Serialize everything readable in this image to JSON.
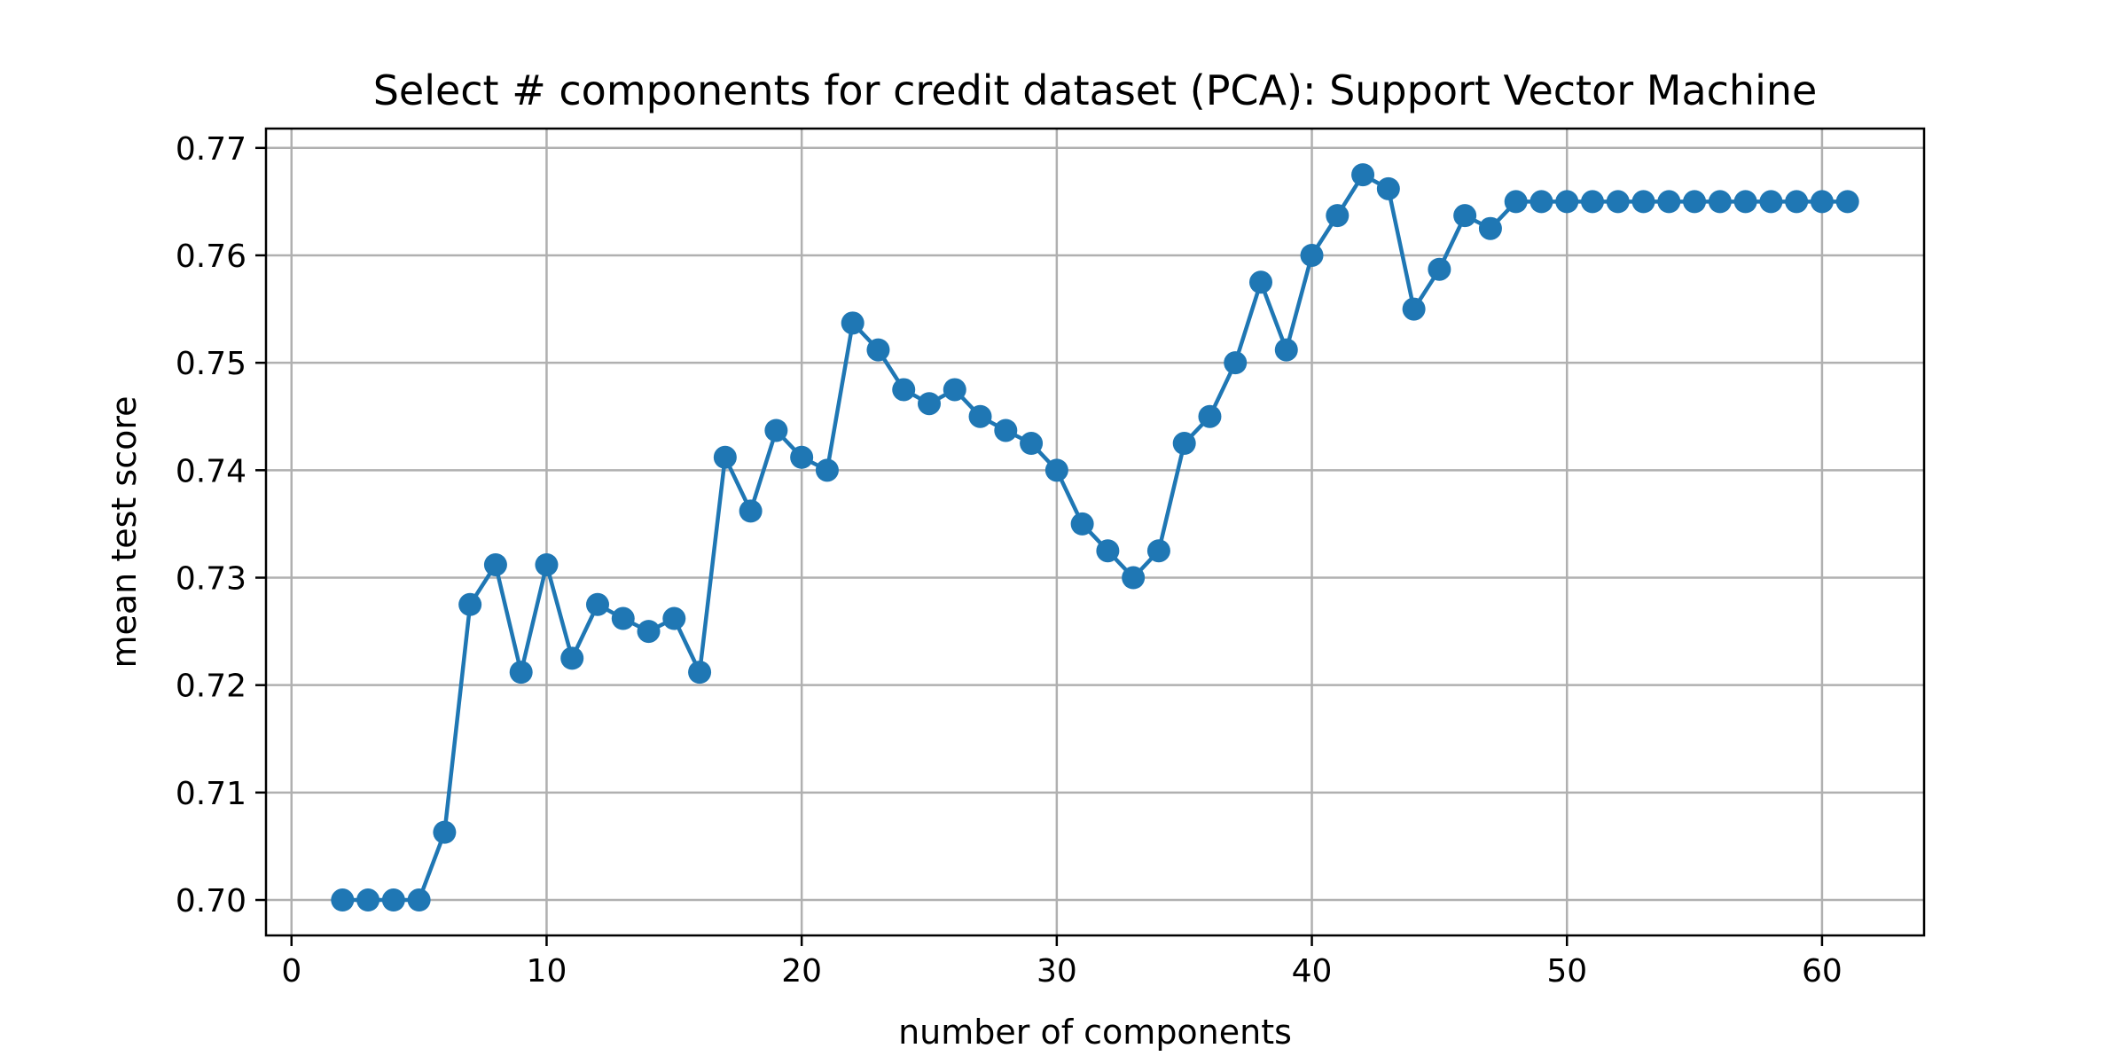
{
  "chart_data": {
    "type": "line",
    "title": "Select # components for credit dataset (PCA): Support Vector Machine",
    "xlabel": "number of components",
    "ylabel": "mean test score",
    "xlim": [
      -1,
      64
    ],
    "ylim": [
      0.6967,
      0.7718
    ],
    "xticks": [
      0,
      10,
      20,
      30,
      40,
      50,
      60
    ],
    "yticks": [
      0.7,
      0.71,
      0.72,
      0.73,
      0.74,
      0.75,
      0.76,
      0.77
    ],
    "grid": true,
    "legend": "none",
    "series": [
      {
        "color": "#1f77b4",
        "marker": "circle",
        "x": [
          2,
          3,
          4,
          5,
          6,
          7,
          8,
          9,
          10,
          11,
          12,
          13,
          14,
          15,
          16,
          17,
          18,
          19,
          20,
          21,
          22,
          23,
          24,
          25,
          26,
          27,
          28,
          29,
          30,
          31,
          32,
          33,
          34,
          35,
          36,
          37,
          38,
          39,
          40,
          41,
          42,
          43,
          44,
          45,
          46,
          47,
          48,
          49,
          50,
          51,
          52,
          53,
          54,
          55,
          56,
          57,
          58,
          59,
          60,
          61
        ],
        "y": [
          0.7,
          0.7,
          0.7,
          0.7,
          0.7063,
          0.7275,
          0.7312,
          0.7212,
          0.7312,
          0.7225,
          0.7275,
          0.7262,
          0.725,
          0.7262,
          0.7212,
          0.7412,
          0.7362,
          0.7437,
          0.7412,
          0.74,
          0.7537,
          0.7512,
          0.7475,
          0.7462,
          0.7475,
          0.745,
          0.7437,
          0.7425,
          0.74,
          0.735,
          0.7325,
          0.73,
          0.7325,
          0.7425,
          0.745,
          0.75,
          0.7575,
          0.7512,
          0.76,
          0.7637,
          0.7675,
          0.7662,
          0.755,
          0.7587,
          0.7637,
          0.7625,
          0.765,
          0.765,
          0.765,
          0.765,
          0.765,
          0.765,
          0.765,
          0.765,
          0.765,
          0.765,
          0.765,
          0.765,
          0.765,
          0.765
        ]
      }
    ]
  }
}
